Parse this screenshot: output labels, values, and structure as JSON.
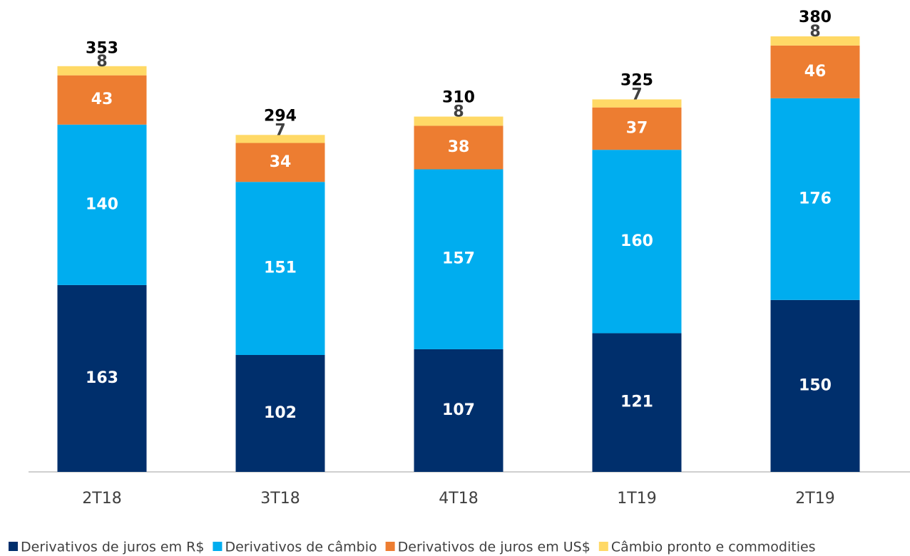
{
  "chart_data": {
    "type": "stacked_bar",
    "categories": [
      "2T18",
      "3T18",
      "4T18",
      "1T19",
      "2T19"
    ],
    "series": [
      {
        "name": "Derivativos de juros em R$",
        "color": "#002f6c",
        "label_color": "#ffffff",
        "values": [
          163,
          102,
          107,
          121,
          150
        ]
      },
      {
        "name": "Derivativos de câmbio",
        "color": "#00adef",
        "label_color": "#ffffff",
        "values": [
          140,
          151,
          157,
          160,
          176
        ]
      },
      {
        "name": "Derivativos de juros em US$",
        "color": "#ed7d31",
        "label_color": "#ffffff",
        "values": [
          43,
          34,
          38,
          37,
          46
        ]
      },
      {
        "name": "Câmbio pronto e commodities",
        "color": "#ffd966",
        "label_color": "#404040",
        "values": [
          8,
          7,
          8,
          7,
          8
        ]
      }
    ],
    "totals": [
      353,
      294,
      310,
      325,
      380
    ],
    "legend": "bottom"
  }
}
